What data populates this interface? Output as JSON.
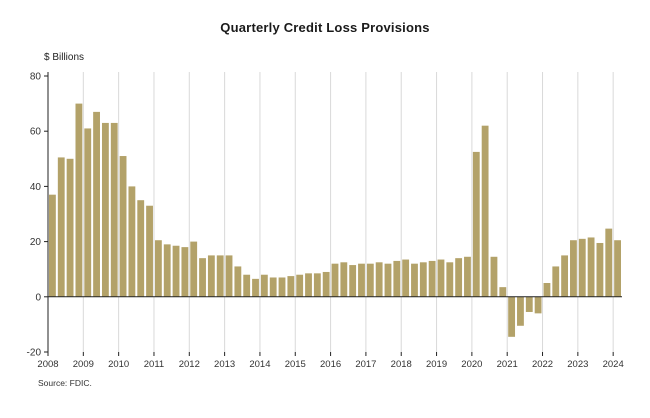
{
  "chart_data": {
    "type": "bar",
    "title": "Quarterly Credit Loss Provisions",
    "ylabel": "$ Billions",
    "source": "Source: FDIC.",
    "frequency": "quarterly",
    "start_year": 2008,
    "x_tick_labels": [
      "2008",
      "2009",
      "2010",
      "2011",
      "2012",
      "2013",
      "2014",
      "2015",
      "2016",
      "2017",
      "2018",
      "2019",
      "2020",
      "2021",
      "2022",
      "2023",
      "2024"
    ],
    "yticks": [
      -20,
      0,
      20,
      40,
      60,
      80
    ],
    "ylim": [
      -20,
      80
    ],
    "bar_color": "#b3a269",
    "gridline_color": "#d9d9d9",
    "axis_color": "#222222",
    "tick_label_color": "#333333",
    "values": [
      37,
      50.5,
      50,
      70,
      61,
      67,
      63,
      63,
      51,
      40,
      35,
      33,
      20.5,
      19,
      18.5,
      18,
      20,
      14,
      15,
      15,
      15,
      11,
      8,
      6.5,
      8,
      7,
      7,
      7.5,
      8,
      8.5,
      8.5,
      9,
      12,
      12.5,
      11.5,
      12,
      12,
      12.5,
      12,
      13,
      13.5,
      12,
      12.5,
      13,
      13.5,
      12.5,
      14,
      14.5,
      52.5,
      62,
      14.5,
      3.5,
      -14.5,
      -10.5,
      -5.5,
      -6,
      5,
      11,
      15,
      20.5,
      21,
      21.5,
      19.5,
      24.7,
      20.5
    ]
  }
}
